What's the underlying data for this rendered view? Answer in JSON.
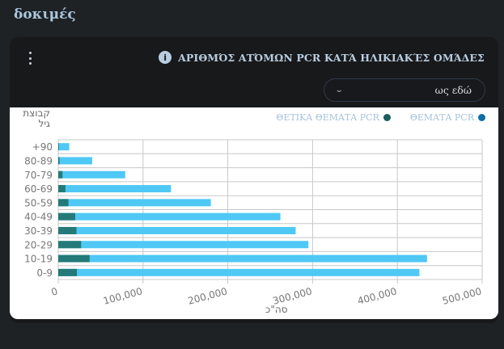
{
  "page": {
    "title": "δοκιμές"
  },
  "card": {
    "menu_icon": "kebab-menu-icon",
    "info_icon": "info-icon",
    "info_glyph": "i",
    "title": "ΑΡΙΘΜΌΣ ΑΤΌΜΩΝ PCR ΚΑΤΆ ΗΛΙΚΙΑΚΈΣ ΟΜΆΔΕΣ",
    "period_select": {
      "value": "ως εδώ",
      "chevron": "⌄"
    }
  },
  "colors": {
    "total_bar": "#4fc8f5",
    "positive_bar": "#237a78",
    "total_legend": "#0e6fa6",
    "positive_legend": "#1b5f5c",
    "grid": "#c8c8c8",
    "tick_text": "#777777"
  },
  "chart_data": {
    "type": "bar",
    "orientation": "horizontal",
    "title": "ΑΡΙΘΜΌΣ ΑΤΌΜΩΝ PCR ΚΑΤΆ ΗΛΙΚΙΑΚΈΣ ΟΜΆΔΕΣ",
    "ylabel": "קבוצת גיל",
    "xlabel": "סה\"כ",
    "categories": [
      "+90",
      "80-89",
      "70-79",
      "60-69",
      "50-59",
      "40-49",
      "30-39",
      "20-29",
      "10-19",
      "0-9"
    ],
    "series": [
      {
        "name": "ΘΕΜΑΤΑ PCR",
        "values": [
          13000,
          40000,
          79000,
          133000,
          180000,
          262000,
          280000,
          295000,
          435000,
          426000
        ]
      },
      {
        "name": "ΘΕΤΙΚΑ ΘΕΜΑΤΑ PCR",
        "values": [
          500,
          1500,
          5000,
          8500,
          12000,
          20000,
          21500,
          27000,
          37000,
          22000
        ]
      }
    ],
    "xlim": [
      0,
      500000
    ],
    "xticks": [
      0,
      100000,
      200000,
      300000,
      400000,
      500000
    ],
    "xtick_labels": [
      "0",
      "100,000",
      "200,000",
      "300,000",
      "400,000",
      "500,000"
    ],
    "grid": true,
    "legend_position": "top-right",
    "legend": [
      "ΘΕΤΙΚΑ ΘΕΜΑΤΑ PCR",
      "ΘΕΜΑΤΑ PCR"
    ]
  },
  "chart_labels": {
    "ylabel_line1": "קבוצת",
    "ylabel_line2": "גיל",
    "xlabel": "סה\"כ",
    "legend_positive": "ΘΕΤΙΚΑ ΘΕΜΑΤΑ PCR",
    "legend_total": "ΘΕΜΑΤΑ PCR"
  }
}
